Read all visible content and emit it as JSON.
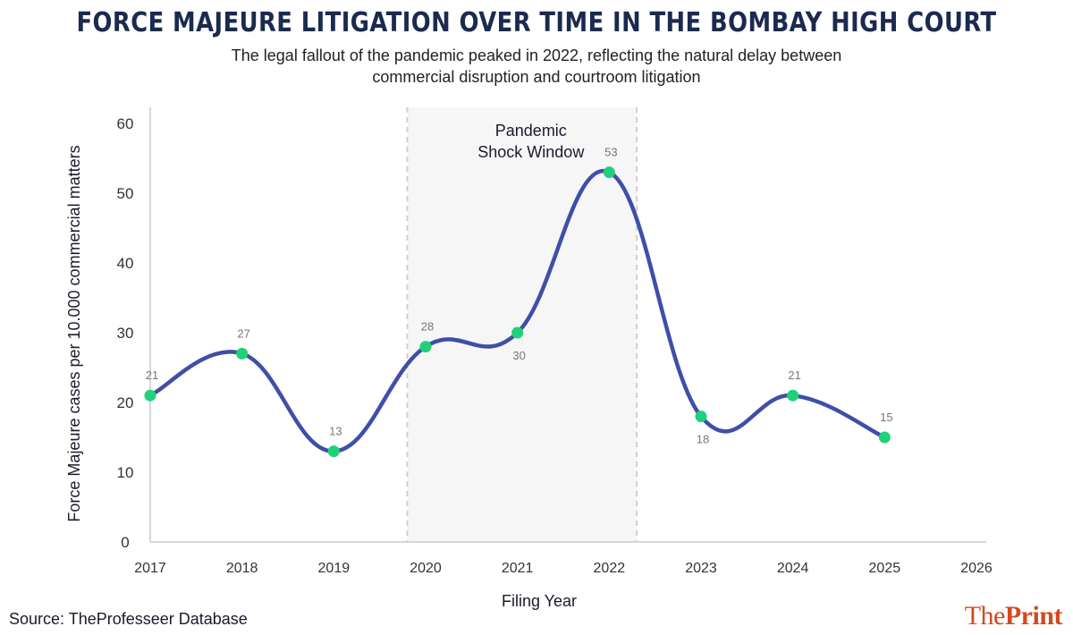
{
  "header": {
    "title": "FORCE MAJEURE LITIGATION OVER TIME IN THE BOMBAY HIGH COURT",
    "subtitle_line1": "The legal fallout of the pandemic peaked in 2022, reflecting the natural delay between",
    "subtitle_line2": "commercial disruption and courtroom litigation"
  },
  "footer": {
    "source": "Source: TheProfesseer Database",
    "logo_light": "The",
    "logo_bold": "Print"
  },
  "colors": {
    "line": "#3f4fa8",
    "marker": "#1fd17a",
    "band": "#f6f6f6",
    "logo": "#d24a1e",
    "title": "#1b2a4e"
  },
  "chart_data": {
    "type": "line",
    "title": "FORCE MAJEURE LITIGATION OVER TIME IN THE BOMBAY HIGH COURT",
    "subtitle": "The legal fallout of the pandemic peaked in 2022, reflecting the natural delay between commercial disruption and courtroom litigation",
    "xlabel": "Filing Year",
    "ylabel": "Force Majeure cases per 10.000 commercial matters",
    "x_ticks": [
      "2017",
      "2018",
      "2019",
      "2020",
      "2021",
      "2022",
      "2023",
      "2024",
      "2025",
      "2026"
    ],
    "y_ticks": [
      "0",
      "10",
      "20",
      "30",
      "40",
      "50",
      "60"
    ],
    "xlim": [
      2017,
      2026
    ],
    "ylim": [
      0,
      60
    ],
    "grid": false,
    "series": [
      {
        "name": "Force Majeure cases",
        "x": [
          2017,
          2018,
          2019,
          2020,
          2021,
          2022,
          2023,
          2024,
          2025
        ],
        "values": [
          21,
          27,
          13,
          28,
          30,
          53,
          18,
          21,
          15
        ],
        "labels": [
          "21",
          "27",
          "13",
          "28",
          "30",
          "53",
          "18",
          "21",
          "15"
        ],
        "label_positions": [
          "above",
          "above",
          "above",
          "above",
          "below",
          "above",
          "below",
          "above",
          "above"
        ]
      }
    ],
    "annotations": [
      {
        "type": "shaded_band",
        "x_start": 2019.8,
        "x_end": 2022.3,
        "label_line1": "Pandemic",
        "label_line2": "Shock Window"
      }
    ]
  }
}
